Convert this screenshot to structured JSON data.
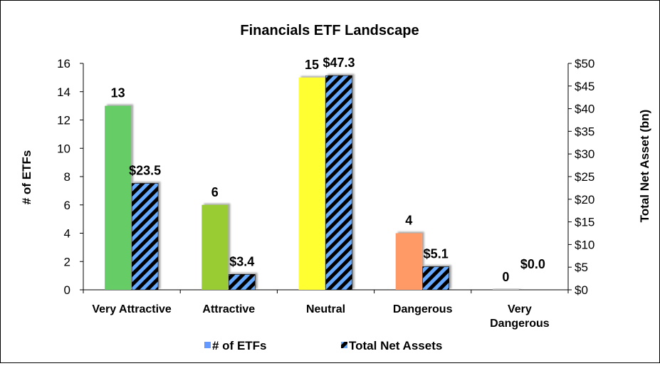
{
  "chart_data": {
    "type": "bar",
    "title": "Financials ETF Landscape",
    "categories": [
      "Very Attractive",
      "Attractive",
      "Neutral",
      "Dangerous",
      "Very Dangerous"
    ],
    "category_label_lines": [
      [
        "Very Attractive"
      ],
      [
        "Attractive"
      ],
      [
        "Neutral"
      ],
      [
        "Dangerous"
      ],
      [
        "Very",
        "Dangerous"
      ]
    ],
    "series": [
      {
        "name": "# of ETFs",
        "axis": "left",
        "values": [
          13,
          6,
          15,
          4,
          0
        ],
        "data_labels": [
          "13",
          "6",
          "15",
          "4",
          "0"
        ],
        "bar_colors": [
          "#66cc66",
          "#99cc33",
          "#ffff33",
          "#ff9966",
          "#bfbfbf"
        ],
        "legend_color": "#6699ff"
      },
      {
        "name": "Total Net Assets",
        "axis": "right",
        "values": [
          23.5,
          3.4,
          47.3,
          5.1,
          0.0
        ],
        "data_labels": [
          "$23.5",
          "$3.4",
          "$47.3",
          "$5.1",
          "$0.0"
        ],
        "pattern": "diagonal-stripes",
        "stripe_colors": [
          "#000000",
          "#66aaff"
        ]
      }
    ],
    "y_left": {
      "label": "# of ETFs",
      "min": 0,
      "max": 16,
      "step": 2,
      "tick_labels": [
        "0",
        "2",
        "4",
        "6",
        "8",
        "10",
        "12",
        "14",
        "16"
      ]
    },
    "y_right": {
      "label": "Total Net Asset (bn)",
      "min": 0,
      "max": 50,
      "step": 5,
      "tick_labels": [
        "$0",
        "$5",
        "$10",
        "$15",
        "$20",
        "$25",
        "$30",
        "$35",
        "$40",
        "$45",
        "$50"
      ]
    },
    "grid": false,
    "legend_position": "bottom"
  }
}
